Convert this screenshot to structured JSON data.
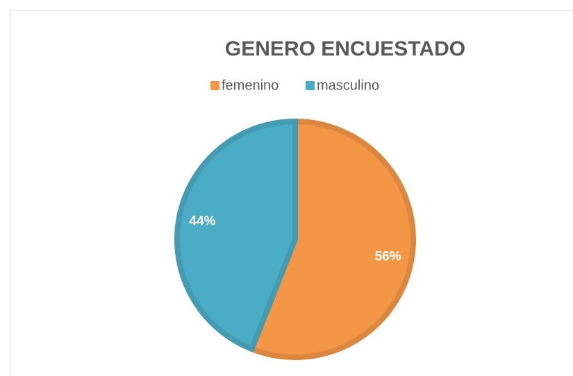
{
  "chart_data": {
    "type": "pie",
    "title": "GENERO ENCUESTADO",
    "categories": [
      "femenino",
      "masculino"
    ],
    "values": [
      56,
      44
    ],
    "value_labels": [
      "56%",
      "44%"
    ],
    "colors": [
      "#f39646",
      "#4bacc6"
    ],
    "legend": "top"
  }
}
